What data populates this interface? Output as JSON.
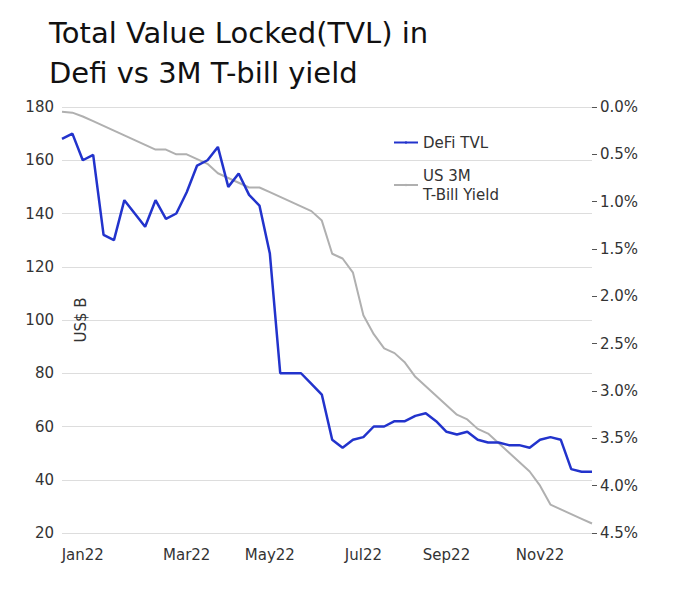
{
  "chart_data": {
    "type": "line",
    "title": "Total Value Locked(TVL) in\nDefi vs 3M T-bill yield",
    "y_label": "US$ B",
    "categories": [
      null,
      null,
      "Jan22",
      null,
      null,
      null,
      null,
      null,
      null,
      null,
      null,
      null,
      "Mar22",
      null,
      null,
      null,
      null,
      null,
      null,
      null,
      "May22",
      null,
      null,
      null,
      null,
      null,
      null,
      null,
      null,
      "Jul22",
      null,
      null,
      null,
      null,
      null,
      null,
      null,
      "Sep22",
      null,
      null,
      null,
      null,
      null,
      null,
      null,
      null,
      "Nov22",
      null,
      null,
      null,
      null,
      null
    ],
    "series": [
      {
        "name": "DeFi TVL",
        "color": "#2233cc",
        "line_style": "solid",
        "values": [
          168,
          170,
          160,
          162,
          132,
          130,
          145,
          140,
          135,
          145,
          138,
          140,
          148,
          158,
          160,
          165,
          150,
          155,
          147,
          143,
          125,
          80,
          80,
          80,
          76,
          72,
          55,
          52,
          55,
          56,
          60,
          60,
          62,
          62,
          64,
          65,
          62,
          58,
          57,
          58,
          55,
          54,
          54,
          53,
          53,
          52,
          55,
          56,
          55,
          44,
          43,
          43
        ]
      },
      {
        "name": "US 3M\nT-Bill Yield",
        "color": "#b0b0b0",
        "line_style": "solid",
        "axis": "y2",
        "values": [
          0.05,
          0.06,
          0.1,
          0.15,
          0.2,
          0.25,
          0.3,
          0.35,
          0.4,
          0.45,
          0.45,
          0.5,
          0.5,
          0.55,
          0.6,
          0.7,
          0.75,
          0.8,
          0.85,
          0.85,
          0.9,
          0.95,
          1.0,
          1.05,
          1.1,
          1.2,
          1.55,
          1.6,
          1.75,
          2.2,
          2.4,
          2.55,
          2.6,
          2.7,
          2.85,
          2.95,
          3.05,
          3.15,
          3.25,
          3.3,
          3.4,
          3.45,
          3.55,
          3.65,
          3.75,
          3.85,
          4.0,
          4.2,
          4.25,
          4.3,
          4.35,
          4.4
        ]
      }
    ],
    "ylim": [
      20,
      180
    ],
    "yticks": [
      20,
      40,
      60,
      80,
      100,
      120,
      140,
      160,
      180
    ],
    "y2lim": [
      4.5,
      0
    ],
    "y2ticks": [
      {
        "value": 0,
        "label": "0.0%"
      },
      {
        "value": 0.5,
        "label": "0.5%"
      },
      {
        "value": 1,
        "label": "1.0%"
      },
      {
        "value": 1.5,
        "label": "1.5%"
      },
      {
        "value": 2,
        "label": "2.0%"
      },
      {
        "value": 2.5,
        "label": "2.5%"
      },
      {
        "value": 3,
        "label": "3.0%"
      },
      {
        "value": 3.5,
        "label": "3.5%"
      },
      {
        "value": 4,
        "label": "4.0%"
      },
      {
        "value": 4.5,
        "label": "4.5%"
      }
    ],
    "grid": true,
    "legend": "upper right"
  }
}
